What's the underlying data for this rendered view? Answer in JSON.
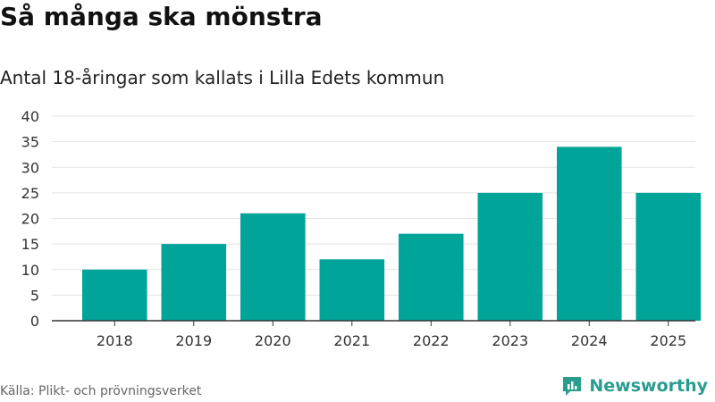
{
  "title": "Så många ska mönstra",
  "subtitle": "Antal 18-åringar som kallats i Lilla Edets kommun",
  "source": "Källa: Plikt- och prövningsverket",
  "brand": {
    "name": "Newsworthy",
    "icon": "newsworthy-logo-icon",
    "color": "#2a9d8f"
  },
  "colors": {
    "bar": "#00a499",
    "grid": "#e3e3e3",
    "axis": "#333333",
    "tick_text": "#333333"
  },
  "chart_data": {
    "type": "bar",
    "categories": [
      "2018",
      "2019",
      "2020",
      "2021",
      "2022",
      "2023",
      "2024",
      "2025"
    ],
    "values": [
      10,
      15,
      21,
      12,
      17,
      25,
      34,
      25
    ],
    "yticks": [
      "0",
      "5",
      "10",
      "15",
      "20",
      "25",
      "30",
      "35",
      "40"
    ],
    "ylim": [
      0,
      40
    ],
    "grid": true,
    "legend": "none"
  }
}
